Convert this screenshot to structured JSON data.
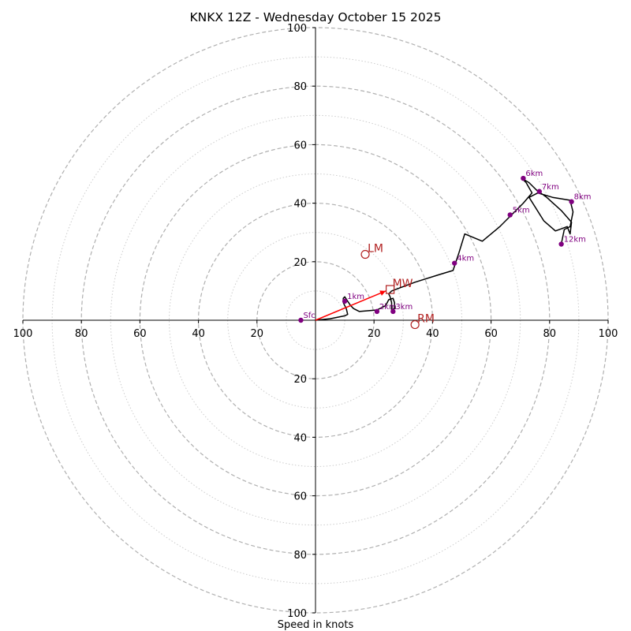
{
  "chart_data": {
    "type": "hodograph",
    "title": "KNKX 12Z - Wednesday October 15 2025",
    "xlabel": "Speed in knots",
    "range": [
      -100,
      100
    ],
    "ring_step": 10,
    "axis_ticks": [
      100,
      80,
      60,
      40,
      20
    ],
    "colors": {
      "ring_major": "#b0b0b0",
      "ring_minor": "#cccccc",
      "axis": "#000000",
      "trace": "#000000",
      "height_marker": "#800080",
      "motion": "#b22222",
      "shear_vector": "#ff0000"
    },
    "trace": [
      [
        0,
        0
      ],
      [
        5,
        0.5
      ],
      [
        10,
        1.5
      ],
      [
        11,
        2
      ],
      [
        10.5,
        4
      ],
      [
        10,
        5
      ],
      [
        9.5,
        6
      ],
      [
        9.5,
        7.5
      ],
      [
        10,
        8
      ],
      [
        11,
        6.5
      ],
      [
        12,
        5
      ],
      [
        13,
        4
      ],
      [
        15,
        3
      ],
      [
        21,
        3.5
      ],
      [
        24,
        5
      ],
      [
        25,
        7
      ],
      [
        26.5,
        7.5
      ],
      [
        27,
        6
      ],
      [
        27,
        4
      ],
      [
        26,
        3.5
      ],
      [
        26,
        6
      ],
      [
        25.5,
        8
      ],
      [
        25,
        9
      ],
      [
        26,
        10
      ],
      [
        34,
        13
      ],
      [
        42,
        15.5
      ],
      [
        47,
        17
      ],
      [
        49,
        23
      ],
      [
        51,
        29.5
      ],
      [
        57,
        27
      ],
      [
        63,
        32
      ],
      [
        67,
        36
      ],
      [
        71,
        40
      ],
      [
        74,
        43.5
      ],
      [
        72,
        47
      ],
      [
        70.5,
        48.5
      ],
      [
        73,
        47
      ],
      [
        75.5,
        44.5
      ],
      [
        79,
        42
      ],
      [
        84,
        37.5
      ],
      [
        87.5,
        33.5
      ],
      [
        87,
        29.5
      ],
      [
        86,
        32
      ],
      [
        82,
        30.5
      ],
      [
        78,
        34
      ],
      [
        73,
        42
      ],
      [
        76,
        43.5
      ],
      [
        81,
        42
      ],
      [
        87,
        41
      ],
      [
        88,
        37
      ],
      [
        87,
        32
      ],
      [
        85,
        31
      ],
      [
        84,
        26
      ]
    ],
    "height_markers": [
      {
        "label": "Sfc",
        "u": -5,
        "v": 0
      },
      {
        "label": "1km",
        "u": 10,
        "v": 6.5
      },
      {
        "label": "2km",
        "u": 21,
        "v": 3
      },
      {
        "label": "3km",
        "u": 26.5,
        "v": 3
      },
      {
        "label": "4km",
        "u": 47.5,
        "v": 19.5
      },
      {
        "label": "5km",
        "u": 66.5,
        "v": 36
      },
      {
        "label": "6km",
        "u": 71,
        "v": 48.5
      },
      {
        "label": "7km",
        "u": 76.5,
        "v": 44
      },
      {
        "label": "8km",
        "u": 87.5,
        "v": 40.5
      },
      {
        "label": "12km",
        "u": 84,
        "v": 26
      }
    ],
    "storm_motions": [
      {
        "label": "LM",
        "symbol": "circle",
        "u": 17,
        "v": 22.5
      },
      {
        "label": "MW",
        "symbol": "square",
        "u": 25.5,
        "v": 10.5
      },
      {
        "label": "RM",
        "symbol": "circle",
        "u": 34,
        "v": -1.5
      }
    ],
    "shear_vector": {
      "u": 24,
      "v": 10
    }
  }
}
